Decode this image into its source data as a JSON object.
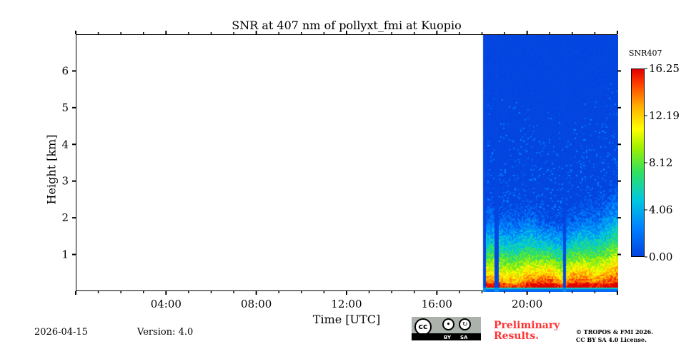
{
  "chart_data": {
    "type": "heatmap",
    "title": "SNR at 407 nm of pollyxt_fmi at Kuopio",
    "xlabel": "Time [UTC]",
    "ylabel": "Height [km]",
    "xlim": [
      0,
      24
    ],
    "ylim": [
      0,
      7
    ],
    "xticks": [
      {
        "v": 4,
        "label": "04:00"
      },
      {
        "v": 8,
        "label": "08:00"
      },
      {
        "v": 12,
        "label": "12:00"
      },
      {
        "v": 16,
        "label": "16:00"
      },
      {
        "v": 20,
        "label": "20:00"
      }
    ],
    "yticks": [
      {
        "v": 1,
        "label": "1"
      },
      {
        "v": 2,
        "label": "2"
      },
      {
        "v": 3,
        "label": "3"
      },
      {
        "v": 4,
        "label": "4"
      },
      {
        "v": 5,
        "label": "5"
      },
      {
        "v": 6,
        "label": "6"
      }
    ],
    "data_start_hour": 18.0,
    "data_end_hour": 24.0,
    "gaps_hours": [
      [
        18.55,
        18.7
      ],
      [
        21.55,
        21.7
      ]
    ],
    "profile_time_hours": [
      18.0,
      18.5,
      19.0,
      19.5,
      20.0,
      20.5,
      21.0,
      21.5,
      22.0,
      22.5,
      23.0,
      23.5,
      24.0
    ],
    "layer_top_km": [
      2.4,
      2.5,
      2.45,
      2.4,
      2.6,
      2.3,
      2.2,
      2.15,
      2.4,
      2.5,
      2.55,
      2.8,
      3.2
    ],
    "near_surface_peak_snr": [
      14,
      14,
      13,
      12.5,
      14,
      15,
      15.5,
      13,
      15,
      15,
      13.5,
      14.5,
      15
    ],
    "colorbar": {
      "label": "SNR407",
      "min": 0,
      "max": 16.25,
      "ticks": [
        "16.25",
        "12.19",
        "8.12",
        "4.06",
        "0.00"
      ]
    }
  },
  "footer": {
    "date": "2026-04-15",
    "version": "Version: 4.0",
    "cc_by": "BY",
    "cc_sa": "SA",
    "cc_logo": "cc",
    "prelim_line1": "Preliminary",
    "prelim_line2": "Results.",
    "copyright1": "© TROPOS & FMI 2026.",
    "copyright2": "CC BY SA 4.0 License."
  }
}
